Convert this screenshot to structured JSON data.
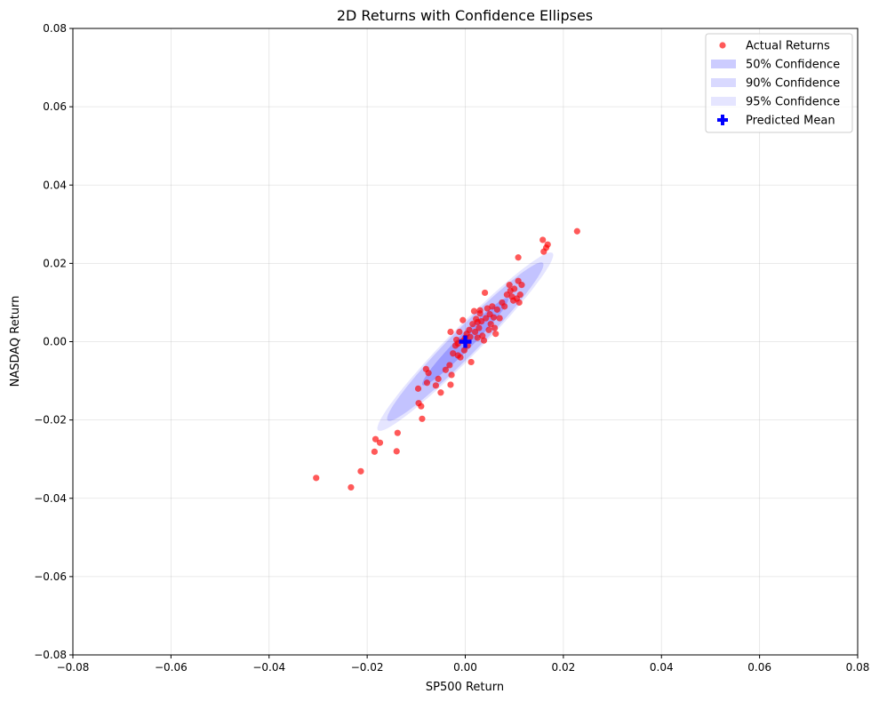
{
  "chart_data": {
    "type": "scatter",
    "title": "2D Returns with Confidence Ellipses",
    "xlabel": "SP500 Return",
    "ylabel": "NASDAQ Return",
    "xlim": [
      -0.08,
      0.08
    ],
    "ylim": [
      -0.08,
      0.08
    ],
    "grid": true,
    "legend_position": "top-right",
    "xticks": [
      -0.08,
      -0.06,
      -0.04,
      -0.02,
      0.0,
      0.02,
      0.04,
      0.06,
      0.08
    ],
    "yticks": [
      -0.08,
      -0.06,
      -0.04,
      -0.02,
      0.0,
      0.02,
      0.04,
      0.06,
      0.08
    ],
    "xtick_labels": [
      "−0.08",
      "−0.06",
      "−0.04",
      "−0.02",
      "0.00",
      "0.02",
      "0.04",
      "0.06",
      "0.08"
    ],
    "ytick_labels": [
      "−0.08",
      "−0.06",
      "−0.04",
      "−0.02",
      "0.00",
      "0.02",
      "0.04",
      "0.06",
      "0.08"
    ],
    "predicted_mean": {
      "name": "Predicted Mean",
      "x": 0.0,
      "y": 0.0,
      "color": "#0000ff"
    },
    "confidence_ellipses": [
      {
        "name": "95% Confidence",
        "level": 0.95,
        "center": [
          0.0,
          0.0
        ],
        "angle_deg": 52,
        "semi_major": 0.0288,
        "semi_minor": 0.0034,
        "color": "#0000ff",
        "opacity": 0.1
      },
      {
        "name": "90% Confidence",
        "level": 0.9,
        "center": [
          0.0,
          0.0
        ],
        "angle_deg": 52,
        "semi_major": 0.0256,
        "semi_minor": 0.003,
        "color": "#0000ff",
        "opacity": 0.15
      },
      {
        "name": "50% Confidence",
        "level": 0.5,
        "center": [
          0.0,
          0.0
        ],
        "angle_deg": 52,
        "semi_major": 0.0141,
        "semi_minor": 0.0017,
        "color": "#0000ff",
        "opacity": 0.2
      }
    ],
    "series": [
      {
        "name": "Actual Returns",
        "color": "#ff0000",
        "opacity": 0.65,
        "points": [
          [
            -0.0304,
            -0.0348
          ],
          [
            -0.0233,
            -0.0372
          ],
          [
            -0.0213,
            -0.0331
          ],
          [
            -0.0185,
            -0.0281
          ],
          [
            -0.0183,
            -0.0249
          ],
          [
            -0.0174,
            -0.0258
          ],
          [
            -0.014,
            -0.028
          ],
          [
            -0.0138,
            -0.0233
          ],
          [
            0.0228,
            0.0282
          ],
          [
            0.0158,
            0.026
          ],
          [
            0.0168,
            0.0248
          ],
          [
            0.0165,
            0.024
          ],
          [
            0.016,
            0.023
          ],
          [
            0.0108,
            0.0215
          ],
          [
            -0.0096,
            -0.012
          ],
          [
            -0.0095,
            -0.0157
          ],
          [
            -0.009,
            -0.0165
          ],
          [
            -0.0088,
            -0.0197
          ],
          [
            -0.008,
            -0.007
          ],
          [
            -0.0078,
            -0.0105
          ],
          [
            -0.0075,
            -0.008
          ],
          [
            -0.006,
            -0.0112
          ],
          [
            -0.0055,
            -0.0095
          ],
          [
            -0.005,
            -0.013
          ],
          [
            -0.004,
            -0.0072
          ],
          [
            -0.0032,
            -0.006
          ],
          [
            -0.003,
            -0.011
          ],
          [
            -0.0028,
            -0.0085
          ],
          [
            -0.0025,
            -0.003
          ],
          [
            -0.002,
            -0.001
          ],
          [
            -0.0018,
            0.0005
          ],
          [
            -0.0015,
            -0.0035
          ],
          [
            -0.0012,
            0.0025
          ],
          [
            -0.001,
            -0.004
          ],
          [
            -0.0005,
            0.0002
          ],
          [
            -0.0002,
            -0.0022
          ],
          [
            0.0,
            0.001
          ],
          [
            0.0003,
            0.002
          ],
          [
            0.0005,
            -0.001
          ],
          [
            0.0008,
            0.003
          ],
          [
            0.001,
            0.0012
          ],
          [
            0.0012,
            -0.0052
          ],
          [
            0.0015,
            0.0045
          ],
          [
            0.0018,
            0.0078
          ],
          [
            0.002,
            0.0025
          ],
          [
            0.0022,
            0.0058
          ],
          [
            0.0025,
            0.001
          ],
          [
            0.0028,
            0.0035
          ],
          [
            0.003,
            0.008
          ],
          [
            0.0033,
            0.0052
          ],
          [
            0.0035,
            0.0015
          ],
          [
            0.0038,
            0.0003
          ],
          [
            0.004,
            0.0125
          ],
          [
            0.0042,
            0.006
          ],
          [
            0.0045,
            0.0085
          ],
          [
            0.0048,
            0.003
          ],
          [
            0.005,
            0.007
          ],
          [
            0.0052,
            0.0045
          ],
          [
            0.0055,
            0.009
          ],
          [
            0.0058,
            0.0062
          ],
          [
            0.006,
            0.0035
          ],
          [
            0.0062,
            0.002
          ],
          [
            0.0065,
            0.0082
          ],
          [
            0.007,
            0.006
          ],
          [
            0.0075,
            0.01
          ],
          [
            0.008,
            0.009
          ],
          [
            0.0085,
            0.012
          ],
          [
            0.009,
            0.0145
          ],
          [
            0.0092,
            0.013
          ],
          [
            0.0095,
            0.0115
          ],
          [
            0.0098,
            0.0105
          ],
          [
            0.01,
            0.0135
          ],
          [
            0.0105,
            0.011
          ],
          [
            0.0108,
            0.0155
          ],
          [
            0.011,
            0.01
          ],
          [
            0.0112,
            0.012
          ],
          [
            0.0115,
            0.0145
          ],
          [
            -0.003,
            0.0025
          ],
          [
            -0.0005,
            0.0055
          ],
          [
            0.0025,
            0.005
          ],
          [
            0.003,
            0.0072
          ],
          [
            -0.0015,
            -0.0005
          ]
        ]
      }
    ],
    "legend": [
      {
        "label": "Actual Returns",
        "kind": "marker-dot",
        "color": "#ff0000"
      },
      {
        "label": "50% Confidence",
        "kind": "patch",
        "color": "#0000ff",
        "opacity": 0.2
      },
      {
        "label": "90% Confidence",
        "kind": "patch",
        "color": "#0000ff",
        "opacity": 0.15
      },
      {
        "label": "95% Confidence",
        "kind": "patch",
        "color": "#0000ff",
        "opacity": 0.1
      },
      {
        "label": "Predicted Mean",
        "kind": "marker-plus",
        "color": "#0000ff"
      }
    ]
  }
}
